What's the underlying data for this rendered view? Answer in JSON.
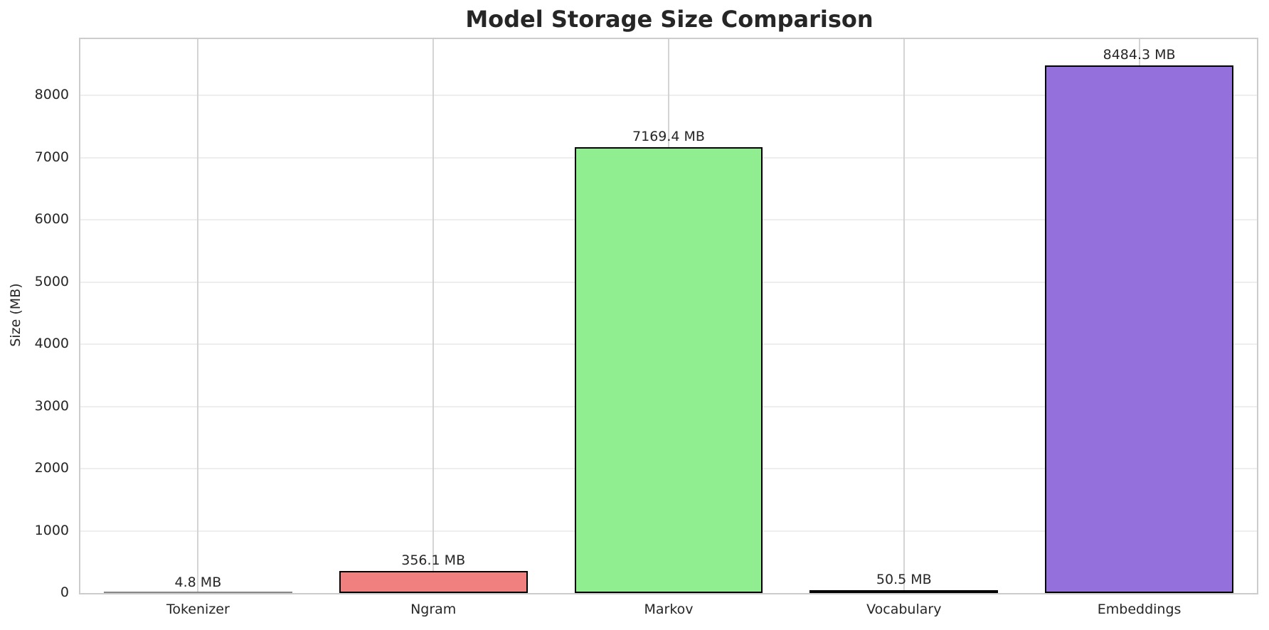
{
  "chart_data": {
    "type": "bar",
    "title": "Model Storage Size Comparison",
    "xlabel": "",
    "ylabel": "Size (MB)",
    "categories": [
      "Tokenizer",
      "Ngram",
      "Markov",
      "Vocabulary",
      "Embeddings"
    ],
    "values": [
      4.8,
      356.1,
      7169.4,
      50.5,
      8484.3
    ],
    "value_labels": [
      "4.8 MB",
      "356.1 MB",
      "7169.4 MB",
      "50.5 MB",
      "8484.3 MB"
    ],
    "colors": [
      "#add8e6",
      "#f08080",
      "#90ee90",
      "#ffd700",
      "#9370db"
    ],
    "ylim": [
      0,
      8908
    ],
    "yticks": [
      0,
      1000,
      2000,
      3000,
      4000,
      5000,
      6000,
      7000,
      8000
    ],
    "grid": true,
    "legend": null
  }
}
